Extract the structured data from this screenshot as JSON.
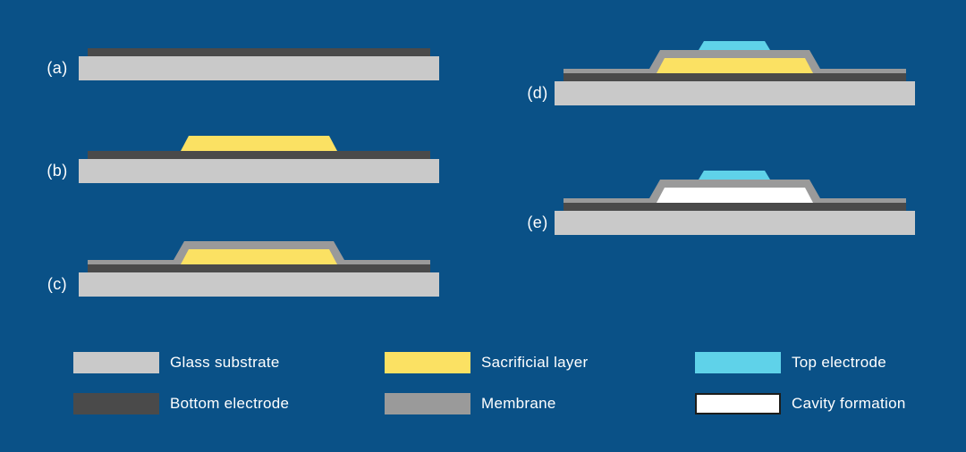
{
  "figure": {
    "background": "#0a5187",
    "description": "Microfabrication process flow with steps (a) through (e)"
  },
  "colors": {
    "glass_substrate": "#c9c9c9",
    "bottom_electrode": "#4a4a4a",
    "sacrificial_layer": "#fbe163",
    "membrane": "#9a9a9a",
    "top_electrode": "#5fd2e9",
    "cavity_formation": "#ffffff",
    "cavity_outline": "#1d1d1b",
    "label_text": "#ffffff"
  },
  "steps": [
    {
      "id": "a",
      "label": "(a)",
      "layers": [
        "glass_substrate",
        "bottom_electrode"
      ]
    },
    {
      "id": "b",
      "label": "(b)",
      "layers": [
        "glass_substrate",
        "bottom_electrode",
        "sacrificial_layer"
      ]
    },
    {
      "id": "c",
      "label": "(c)",
      "layers": [
        "glass_substrate",
        "bottom_electrode",
        "membrane",
        "sacrificial_layer"
      ]
    },
    {
      "id": "d",
      "label": "(d)",
      "layers": [
        "glass_substrate",
        "bottom_electrode",
        "membrane",
        "sacrificial_layer",
        "top_electrode"
      ]
    },
    {
      "id": "e",
      "label": "(e)",
      "layers": [
        "glass_substrate",
        "bottom_electrode",
        "membrane",
        "cavity_formation",
        "top_electrode"
      ]
    }
  ],
  "legend": {
    "items": [
      {
        "key": "glass_substrate",
        "label": "Glass substrate"
      },
      {
        "key": "bottom_electrode",
        "label": "Bottom electrode"
      },
      {
        "key": "sacrificial_layer",
        "label": "Sacrificial layer"
      },
      {
        "key": "membrane",
        "label": "Membrane"
      },
      {
        "key": "top_electrode",
        "label": "Top electrode"
      },
      {
        "key": "cavity_formation",
        "label": "Cavity formation"
      }
    ]
  }
}
